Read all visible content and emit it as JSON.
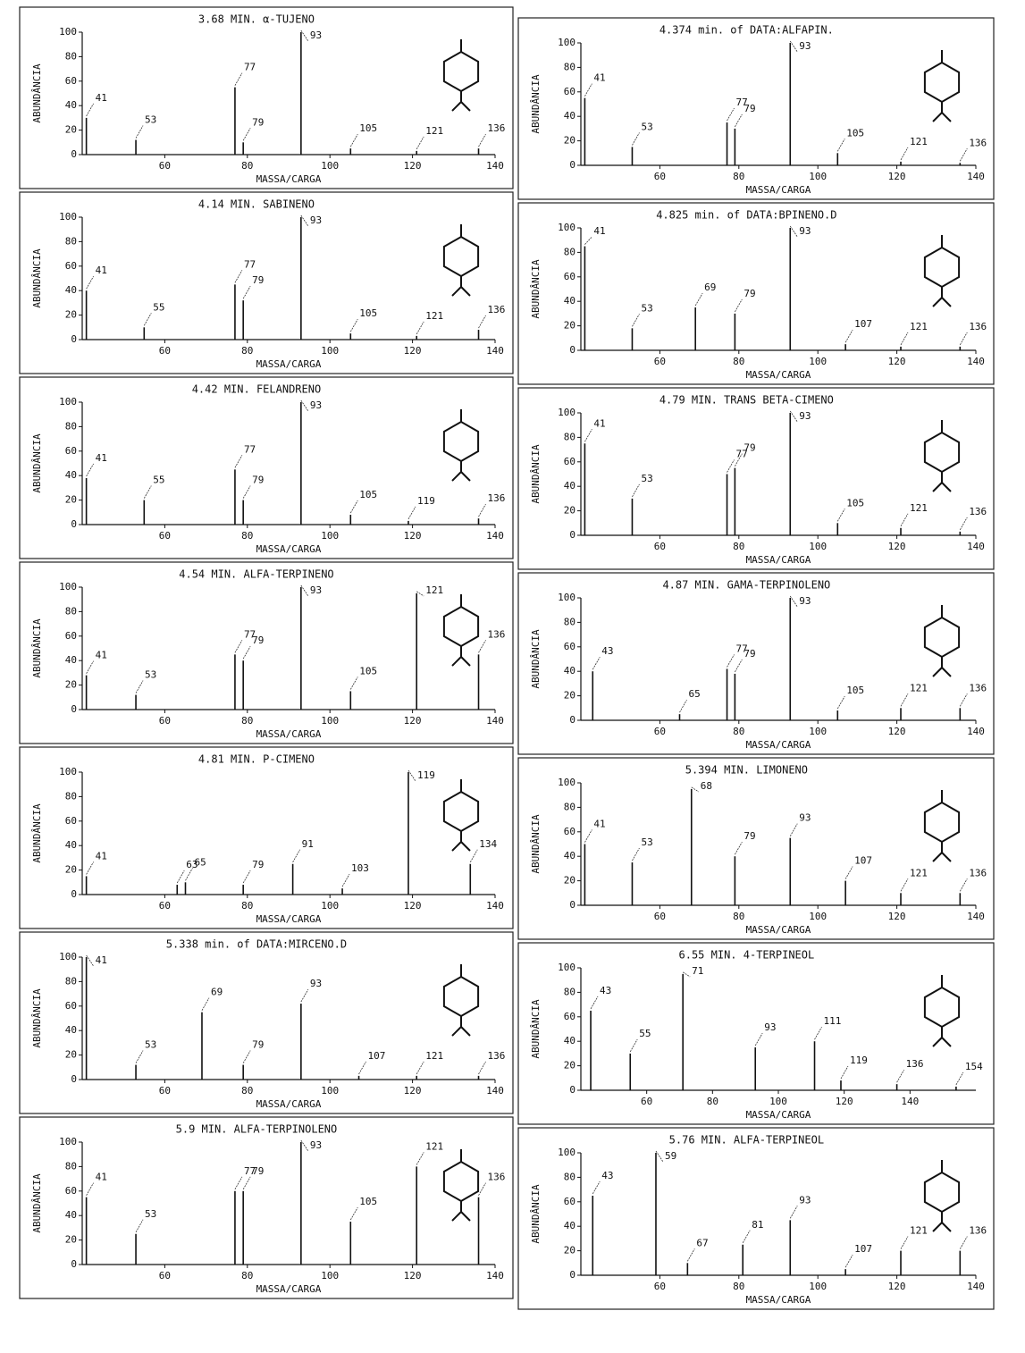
{
  "chart_data": [
    {
      "type": "bar",
      "title": "3.68 MIN. α-TUJENO",
      "xlabel": "MASSA/CARGA",
      "ylabel": "ABUNDÂNCIA",
      "x": [
        41,
        53,
        77,
        79,
        93,
        105,
        121,
        136
      ],
      "values": [
        30,
        12,
        55,
        10,
        100,
        5,
        3,
        5
      ],
      "xlim": [
        40,
        140
      ],
      "ylim": [
        0,
        100
      ],
      "xticks": [
        60,
        80,
        100,
        120,
        140
      ],
      "yticks": [
        0,
        20,
        40,
        60,
        80,
        100
      ]
    },
    {
      "type": "bar",
      "title": "4.374 min. of DATA:ALFAPIN.",
      "xlabel": "MASSA/CARGA",
      "ylabel": "ABUNDÂNCIA",
      "x": [
        41,
        53,
        77,
        79,
        93,
        105,
        121,
        136
      ],
      "values": [
        55,
        15,
        35,
        30,
        100,
        10,
        3,
        2
      ],
      "xlim": [
        40,
        140
      ],
      "ylim": [
        0,
        100
      ],
      "xticks": [
        60,
        80,
        100,
        120,
        140
      ],
      "yticks": [
        0,
        20,
        40,
        60,
        80,
        100
      ]
    },
    {
      "type": "bar",
      "title": "4.14 MIN. SABINENO",
      "xlabel": "MASSA/CARGA",
      "ylabel": "ABUNDÂNCIA",
      "x": [
        41,
        55,
        77,
        79,
        93,
        105,
        121,
        136
      ],
      "values": [
        40,
        10,
        45,
        32,
        100,
        5,
        3,
        8
      ],
      "xlim": [
        40,
        140
      ],
      "ylim": [
        0,
        100
      ],
      "xticks": [
        60,
        80,
        100,
        120,
        140
      ],
      "yticks": [
        0,
        20,
        40,
        60,
        80,
        100
      ]
    },
    {
      "type": "bar",
      "title": "4.825 min. of DATA:BPINENO.D",
      "xlabel": "MASSA/CARGA",
      "ylabel": "ABUNDÂNCIA",
      "x": [
        41,
        53,
        69,
        79,
        93,
        107,
        121,
        136
      ],
      "values": [
        85,
        18,
        35,
        30,
        100,
        5,
        3,
        3
      ],
      "xlim": [
        40,
        140
      ],
      "ylim": [
        0,
        100
      ],
      "xticks": [
        60,
        80,
        100,
        120,
        140
      ],
      "yticks": [
        0,
        20,
        40,
        60,
        80,
        100
      ]
    },
    {
      "type": "bar",
      "title": "4.42 MIN. FELANDRENO",
      "xlabel": "MASSA/CARGA",
      "ylabel": "ABUNDÂNCIA",
      "x": [
        41,
        55,
        77,
        79,
        93,
        105,
        119,
        136
      ],
      "values": [
        38,
        20,
        45,
        20,
        100,
        8,
        3,
        5
      ],
      "xlim": [
        40,
        140
      ],
      "ylim": [
        0,
        100
      ],
      "xticks": [
        60,
        80,
        100,
        120,
        140
      ],
      "yticks": [
        0,
        20,
        40,
        60,
        80,
        100
      ]
    },
    {
      "type": "bar",
      "title": "4.79 MIN. TRANS BETA-CIMENO",
      "xlabel": "MASSA/CARGA",
      "ylabel": "ABUNDÂNCIA",
      "x": [
        41,
        53,
        77,
        79,
        93,
        105,
        121,
        136
      ],
      "values": [
        75,
        30,
        50,
        55,
        100,
        10,
        6,
        3
      ],
      "xlim": [
        40,
        140
      ],
      "ylim": [
        0,
        100
      ],
      "xticks": [
        60,
        80,
        100,
        120,
        140
      ],
      "yticks": [
        0,
        20,
        40,
        60,
        80,
        100
      ]
    },
    {
      "type": "bar",
      "title": "4.54 MIN. ALFA-TERPINENO",
      "xlabel": "MASSA/CARGA",
      "ylabel": "ABUNDÂNCIA",
      "x": [
        41,
        53,
        77,
        79,
        93,
        105,
        121,
        136
      ],
      "values": [
        28,
        12,
        45,
        40,
        100,
        15,
        95,
        45
      ],
      "xlim": [
        40,
        140
      ],
      "ylim": [
        0,
        100
      ],
      "xticks": [
        60,
        80,
        100,
        120,
        140
      ],
      "yticks": [
        0,
        20,
        40,
        60,
        80,
        100
      ]
    },
    {
      "type": "bar",
      "title": "4.87 MIN. GAMA-TERPINOLENO",
      "xlabel": "MASSA/CARGA",
      "ylabel": "ABUNDÂNCIA",
      "x": [
        43,
        65,
        77,
        79,
        93,
        105,
        121,
        136
      ],
      "values": [
        40,
        5,
        42,
        38,
        100,
        8,
        10,
        10
      ],
      "xlim": [
        40,
        140
      ],
      "ylim": [
        0,
        100
      ],
      "xticks": [
        60,
        80,
        100,
        120,
        140
      ],
      "yticks": [
        0,
        20,
        40,
        60,
        80,
        100
      ]
    },
    {
      "type": "bar",
      "title": "4.81 MIN. P-CIMENO",
      "xlabel": "MASSA/CARGA",
      "ylabel": "ABUNDÂNCIA",
      "x": [
        41,
        63,
        65,
        79,
        91,
        103,
        119,
        134
      ],
      "values": [
        15,
        8,
        10,
        8,
        25,
        5,
        100,
        25
      ],
      "xlim": [
        40,
        140
      ],
      "ylim": [
        0,
        100
      ],
      "xticks": [
        60,
        80,
        100,
        120,
        140
      ],
      "yticks": [
        0,
        20,
        40,
        60,
        80,
        100
      ]
    },
    {
      "type": "bar",
      "title": "5.394 MIN. LIMONENO",
      "xlabel": "MASSA/CARGA",
      "ylabel": "ABUNDÂNCIA",
      "x": [
        41,
        53,
        68,
        79,
        93,
        107,
        121,
        136
      ],
      "values": [
        50,
        35,
        95,
        40,
        55,
        20,
        10,
        10
      ],
      "xlim": [
        40,
        140
      ],
      "ylim": [
        0,
        100
      ],
      "xticks": [
        60,
        80,
        100,
        120,
        140
      ],
      "yticks": [
        0,
        20,
        40,
        60,
        80,
        100
      ]
    },
    {
      "type": "bar",
      "title": "5.338 min. of DATA:MIRCENO.D",
      "xlabel": "MASSA/CARGA",
      "ylabel": "ABUNDÂNCIA",
      "x": [
        41,
        53,
        69,
        79,
        93,
        107,
        121,
        136
      ],
      "values": [
        100,
        12,
        55,
        12,
        62,
        3,
        3,
        3
      ],
      "xlim": [
        40,
        140
      ],
      "ylim": [
        0,
        100
      ],
      "xticks": [
        60,
        80,
        100,
        120,
        140
      ],
      "yticks": [
        0,
        20,
        40,
        60,
        80,
        100
      ]
    },
    {
      "type": "bar",
      "title": "6.55 MIN. 4-TERPINEOL",
      "xlabel": "MASSA/CARGA",
      "ylabel": "ABUNDÂNCIA",
      "x": [
        43,
        55,
        71,
        93,
        111,
        119,
        136,
        154
      ],
      "values": [
        65,
        30,
        95,
        35,
        40,
        8,
        5,
        3
      ],
      "xlim": [
        40,
        160
      ],
      "ylim": [
        0,
        100
      ],
      "xticks": [
        60,
        80,
        100,
        120,
        140
      ],
      "yticks": [
        0,
        20,
        40,
        60,
        80,
        100
      ]
    },
    {
      "type": "bar",
      "title": "5.9 MIN. ALFA-TERPINOLENO",
      "xlabel": "MASSA/CARGA",
      "ylabel": "ABUNDÂNCIA",
      "x": [
        41,
        53,
        77,
        79,
        93,
        105,
        121,
        136
      ],
      "values": [
        55,
        25,
        60,
        60,
        100,
        35,
        80,
        55
      ],
      "xlim": [
        40,
        140
      ],
      "ylim": [
        0,
        100
      ],
      "xticks": [
        60,
        80,
        100,
        120,
        140
      ],
      "yticks": [
        0,
        20,
        40,
        60,
        80,
        100
      ]
    },
    {
      "type": "bar",
      "title": "5.76 MIN. ALFA-TERPINEOL",
      "xlabel": "MASSA/CARGA",
      "ylabel": "ABUNDÂNCIA",
      "x": [
        43,
        59,
        67,
        81,
        93,
        107,
        121,
        136
      ],
      "values": [
        65,
        100,
        10,
        25,
        45,
        5,
        20,
        20
      ],
      "xlim": [
        40,
        140
      ],
      "ylim": [
        0,
        100
      ],
      "xticks": [
        60,
        80,
        100,
        120,
        140
      ],
      "yticks": [
        0,
        20,
        40,
        60,
        80,
        100
      ]
    }
  ]
}
